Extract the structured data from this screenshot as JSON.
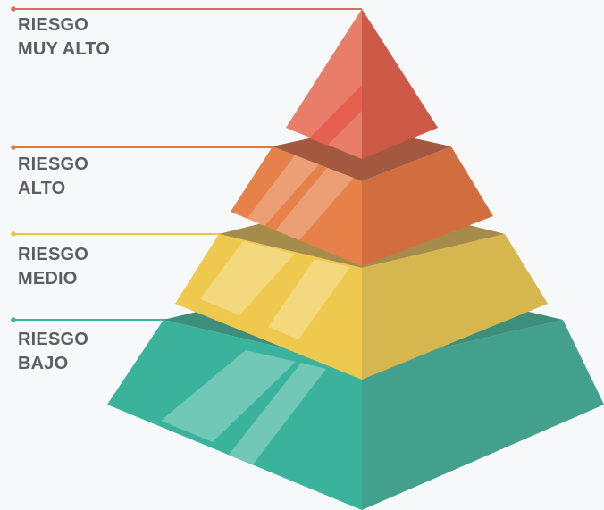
{
  "levels": [
    {
      "id": "very-high",
      "line1": "RIESGO",
      "line2": "MUY ALTO",
      "color": "#e06b55"
    },
    {
      "id": "high",
      "line1": "RIESGO",
      "line2": "ALTO",
      "color": "#e27841"
    },
    {
      "id": "medium",
      "line1": "RIESGO",
      "line2": "MEDIO",
      "color": "#edc54a"
    },
    {
      "id": "low",
      "line1": "RIESGO",
      "line2": "BAJO",
      "color": "#3bb39c"
    }
  ]
}
